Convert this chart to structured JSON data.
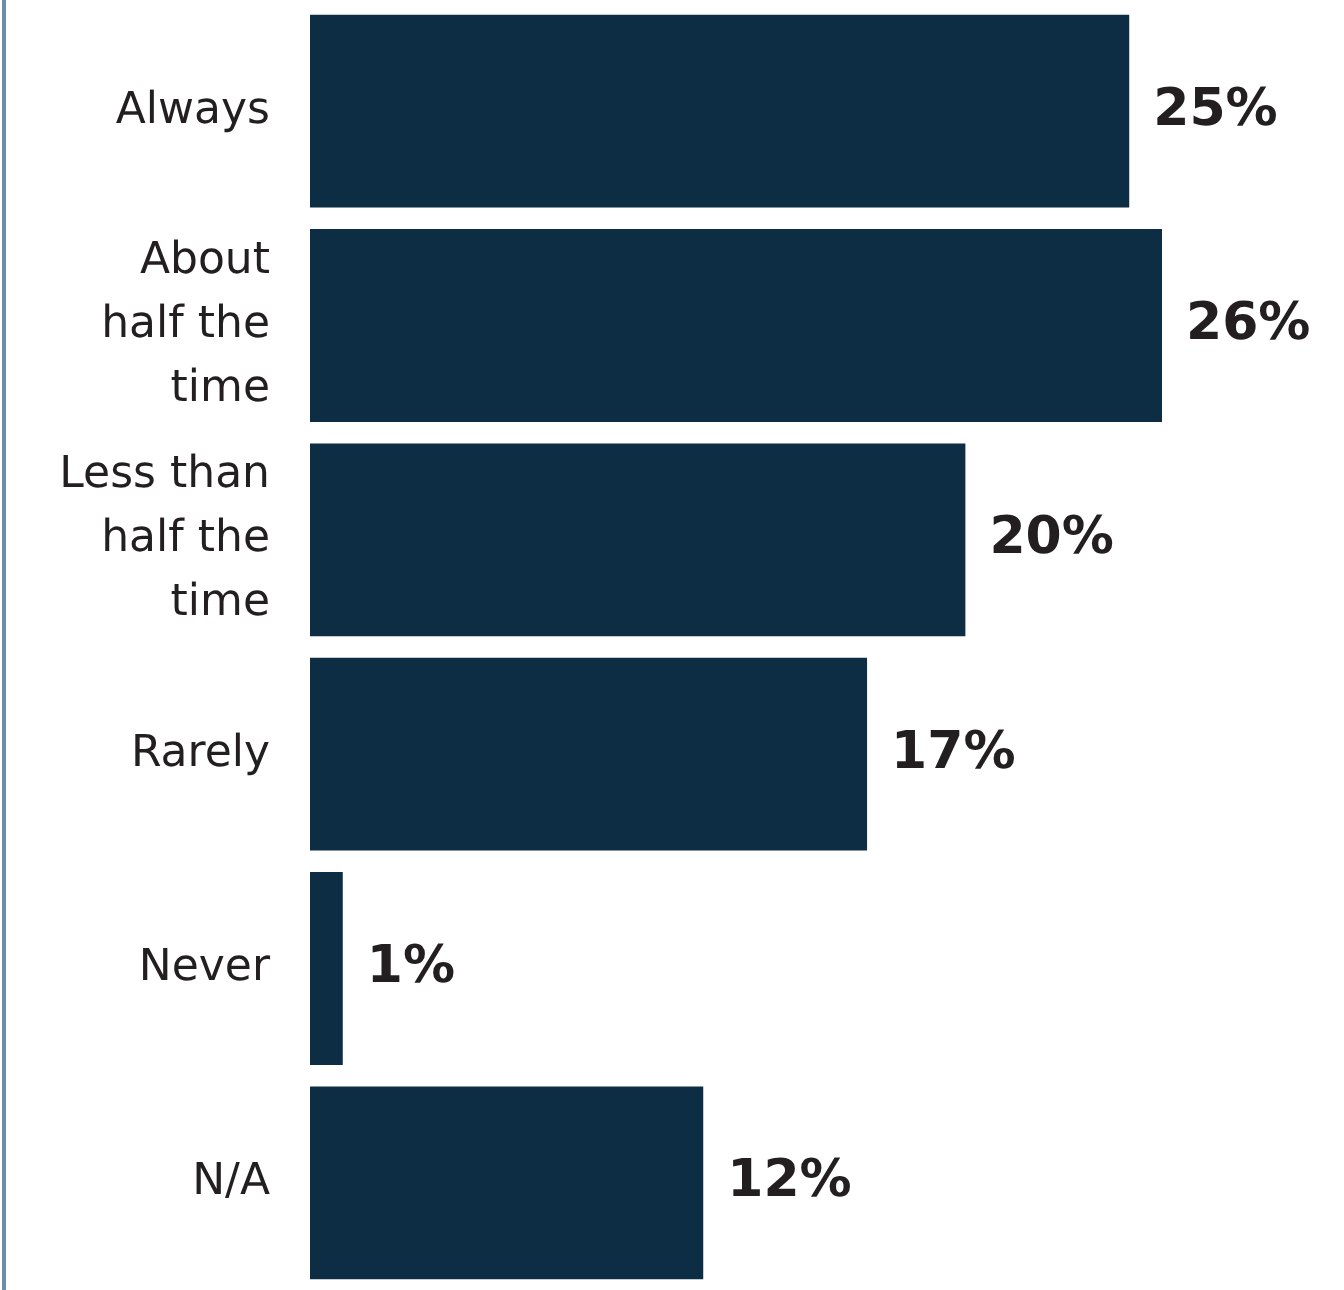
{
  "chart_data": {
    "type": "bar",
    "orientation": "horizontal",
    "categories": [
      "Always",
      "About half the time",
      "Less than half the time",
      "Rarely",
      "Never",
      "N/A"
    ],
    "values": [
      25,
      26,
      20,
      17,
      1,
      12
    ],
    "value_labels": [
      "25%",
      "26%",
      "20%",
      "17%",
      "1%",
      "12%"
    ],
    "color": "#0c2d43"
  }
}
